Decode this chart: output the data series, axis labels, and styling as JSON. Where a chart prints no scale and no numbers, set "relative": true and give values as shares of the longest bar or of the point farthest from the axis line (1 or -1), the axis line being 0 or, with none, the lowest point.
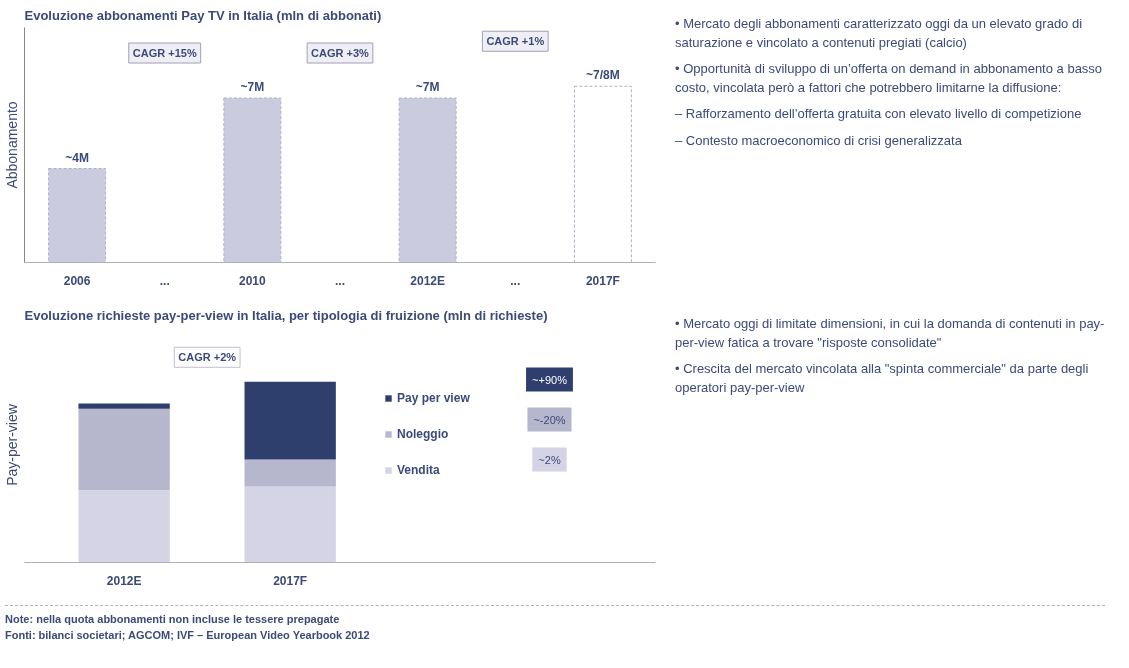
{
  "chart_data": [
    {
      "type": "bar",
      "title": "Evoluzione abbonamenti Pay TV in Italia (mln di abbonati)",
      "ylabel": "Abbonamento",
      "ylim": [
        0,
        10
      ],
      "categories": [
        "2006",
        "...",
        "2010",
        "...",
        "2012E",
        "...",
        "2017F"
      ],
      "values": [
        4,
        null,
        7,
        null,
        7,
        null,
        7.5
      ],
      "value_labels": [
        "~4M",
        null,
        "~7M",
        null,
        "~7M",
        null,
        "~7/8M"
      ],
      "colors": [
        "#cbcbdf",
        null,
        "#cbcbdf",
        null,
        "#cbcbdf",
        null,
        "#ffffff"
      ],
      "annotations": [
        "CAGR +15%",
        "CAGR +3%",
        "CAGR +1%"
      ]
    },
    {
      "type": "other",
      "annotations": [
        "• Mercato degli abbonamenti caratterizzato oggi da un elevato grado di saturazione e vincolato a contenuti pregiati (calcio)",
        "• Opportunità di sviluppo di un’offerta on demand in abbonamento a basso costo, vincolata però a fattori che potrebbero limitarne la diffusione:",
        "– Rafforzamento dell’offerta gratuita con elevato livello di competizione",
        "– Contesto macroeconomico di crisi generalizzata"
      ]
    },
    {
      "type": "bar",
      "title": "Evoluzione richieste pay-per-view in Italia, per tipologia di fruizione (mln di richieste)",
      "ylabel": "Pay-per-view",
      "relative": true,
      "stacked": true,
      "legend": "right",
      "categories": [
        "2012E",
        "2017F"
      ],
      "series": [
        {
          "name": "Vendita",
          "color": "#d4d4e6",
          "values": [
            0.4,
            0.42
          ]
        },
        {
          "name": "Noleggio",
          "color": "#b6b6cc",
          "values": [
            0.45,
            0.15
          ]
        },
        {
          "name": "Pay per view",
          "color": "#2e3f6e",
          "values": [
            0.03,
            0.43
          ]
        }
      ],
      "annotations": [
        "CAGR +2%",
        "~+90%",
        "~-20%",
        "~2%"
      ]
    },
    {
      "type": "other",
      "annotations": [
        "• Mercato oggi di limitate dimensioni, in cui la domanda di contenuti in pay-per-view fatica a trovare \"risposte consolidate\"",
        "• Crescita del mercato vincolata alla \"spinta commerciale\" da parte degli operatori pay-per-view"
      ]
    },
    {
      "type": "other",
      "annotations": [
        "Note: nella quota abbonamenti non incluse le tessere prepagate",
        "Fonti: bilanci societari; AGCOM; IVF – European Video Yearbook 2012"
      ]
    }
  ]
}
